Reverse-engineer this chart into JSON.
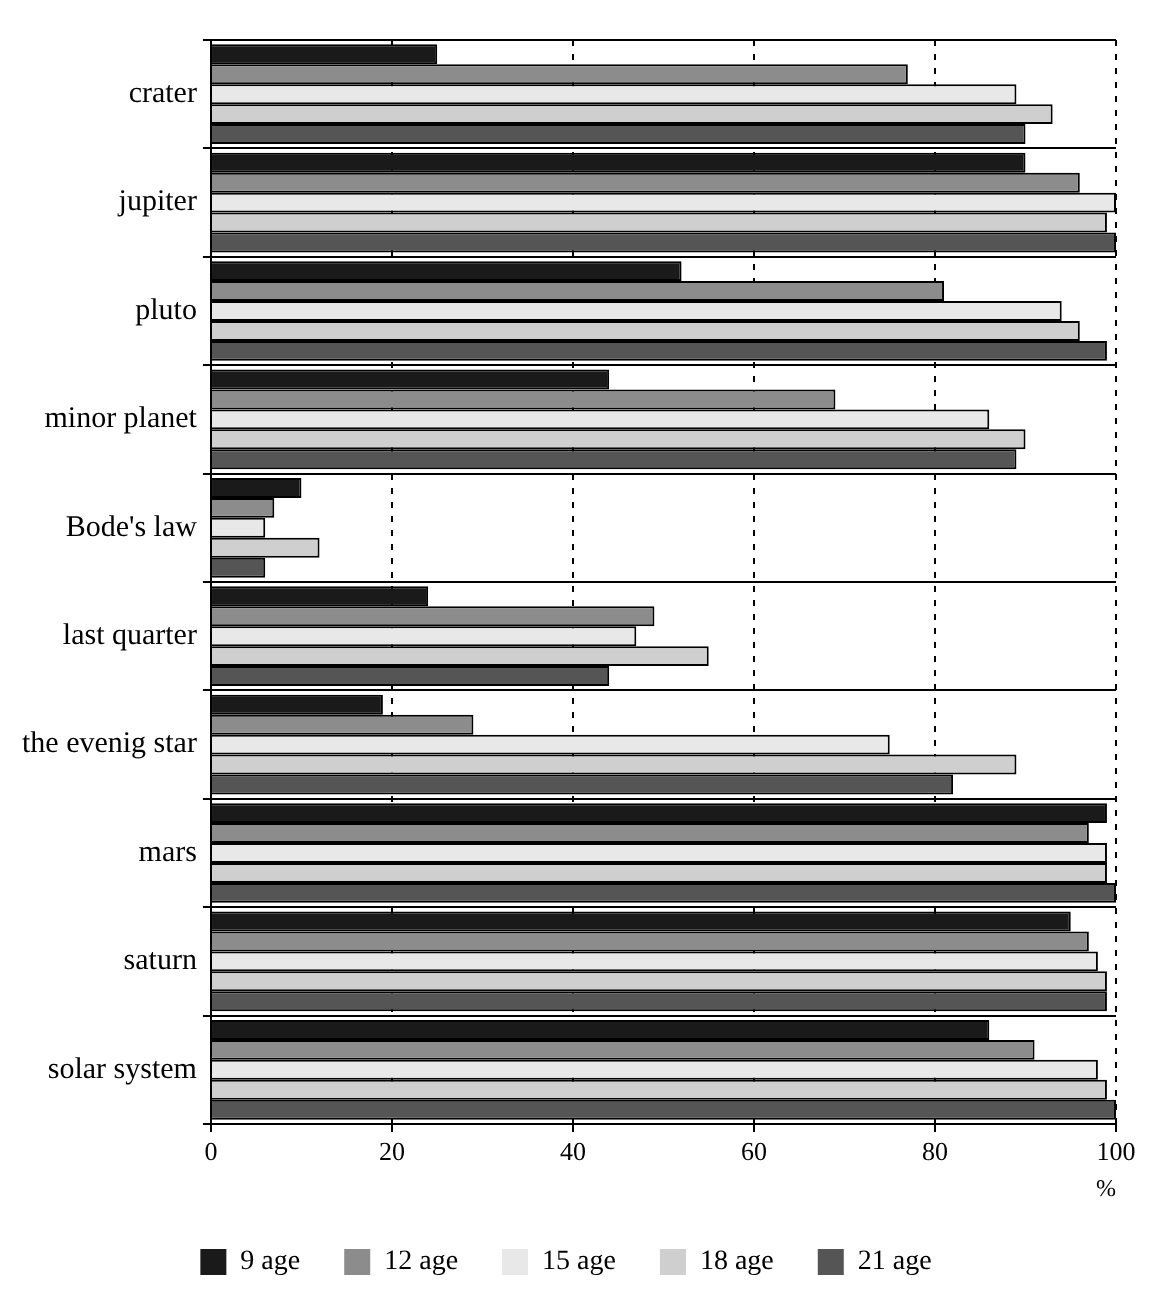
{
  "chart_data": {
    "type": "bar",
    "orientation": "horizontal",
    "xlabel": "%",
    "categories": [
      "crater",
      "jupiter",
      "pluto",
      "minor planet",
      "Bode's law",
      "last quarter",
      "the evenig star",
      "mars",
      "saturn",
      "solar system"
    ],
    "series": [
      {
        "name": "9 age",
        "color": "#1a1a1a",
        "values": [
          25,
          90,
          52,
          44,
          10,
          24,
          19,
          99,
          95,
          86
        ]
      },
      {
        "name": "12 age",
        "color": "#8c8c8c",
        "values": [
          77,
          96,
          81,
          69,
          7,
          49,
          29,
          97,
          97,
          91
        ]
      },
      {
        "name": "15 age",
        "color": "#e8e8e8",
        "values": [
          89,
          100,
          94,
          86,
          6,
          47,
          75,
          99,
          98,
          98
        ]
      },
      {
        "name": "18 age",
        "color": "#cfcfcf",
        "values": [
          93,
          99,
          96,
          90,
          12,
          55,
          89,
          99,
          99,
          99
        ]
      },
      {
        "name": "21 age",
        "color": "#555555",
        "values": [
          90,
          100,
          99,
          89,
          6,
          44,
          82,
          100,
          99,
          100
        ]
      }
    ],
    "xlim": [
      0,
      100
    ],
    "xticks": [
      0,
      20,
      40,
      60,
      80,
      100
    ],
    "grid": true,
    "legend": "bottom"
  }
}
